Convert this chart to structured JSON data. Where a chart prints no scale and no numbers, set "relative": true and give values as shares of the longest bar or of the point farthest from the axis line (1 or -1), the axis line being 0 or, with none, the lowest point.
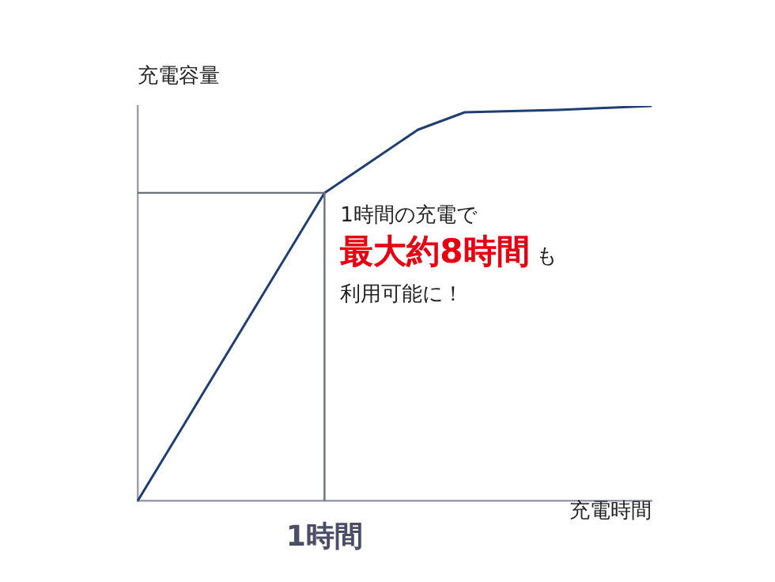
{
  "chart_data": {
    "type": "line",
    "relative": true,
    "ylabel": "充電容量",
    "xlabel": "充電時間",
    "categories": [
      null,
      null,
      null,
      null,
      null,
      null,
      null,
      null,
      null,
      null,
      null,
      null
    ],
    "series": [
      {
        "color": "#1f3f73",
        "values": [
          0,
          0.195,
          0.39,
          0.585,
          0.78,
          0.86,
          0.94,
          0.984,
          0.987,
          0.99,
          0.995,
          1
        ]
      }
    ],
    "ref_lines": [
      {
        "axis": "y",
        "value": 0.78,
        "color": "#6b6f80"
      }
    ],
    "annotations": [
      "1時間の充電で",
      "最大約8時間",
      "も",
      "利用可能に！",
      "1時間"
    ],
    "marker": "none",
    "grid": false,
    "legend": false,
    "line_style": "solid"
  }
}
